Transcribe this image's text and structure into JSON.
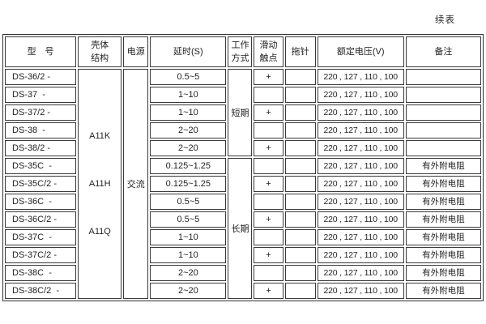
{
  "page": {
    "continued_label": "续表",
    "background_color": "#ffffff",
    "grid_color": "#3b3b3b",
    "text_color": "#1f1f1f"
  },
  "table": {
    "headers": [
      "型　号",
      "壳体\n结构",
      "电源",
      "延时(S)",
      "工作\n方式",
      "滑动\n触点",
      "拖针",
      "额定电压(V)",
      "备注"
    ],
    "shell_codes": [
      "A11K",
      "A11H",
      "A11Q"
    ],
    "power": "交流",
    "work_modes": [
      {
        "label": "短期",
        "rows": 5
      },
      {
        "label": "长期",
        "rows": 8
      }
    ],
    "rows": [
      {
        "model": "DS-36/2 -",
        "delay": "0.5~5",
        "slide": "+",
        "pointer": "",
        "voltage": "220 , 127 , 110 , 100",
        "note": ""
      },
      {
        "model": "DS-37  -",
        "delay": "1~10",
        "slide": "",
        "pointer": "",
        "voltage": "220 , 127 , 110 , 100",
        "note": ""
      },
      {
        "model": "DS-37/2 -",
        "delay": "1~10",
        "slide": "+",
        "pointer": "",
        "voltage": "220 , 127 , 110 , 100",
        "note": ""
      },
      {
        "model": "DS-38  -",
        "delay": "2~20",
        "slide": "",
        "pointer": "",
        "voltage": "220 , 127 , 110 , 100",
        "note": ""
      },
      {
        "model": "DS-38/2 -",
        "delay": "2~20",
        "slide": "+",
        "pointer": "",
        "voltage": "220 , 127 , 110 , 100",
        "note": ""
      },
      {
        "model": "DS-35C  -",
        "delay": "0.125~1.25",
        "slide": "",
        "pointer": "",
        "voltage": "220 , 127 , 110 , 100",
        "note": "有外附电阻"
      },
      {
        "model": "DS-35C/2 -",
        "delay": "0.125~1.25",
        "slide": "+",
        "pointer": "",
        "voltage": "220 , 127 , 110 , 100",
        "note": "有外附电阻"
      },
      {
        "model": "DS-36C  -",
        "delay": "0.5~5",
        "slide": "",
        "pointer": "",
        "voltage": "220 , 127 , 110 , 100",
        "note": "有外附电阻"
      },
      {
        "model": "DS-36C/2 -",
        "delay": "0.5~5",
        "slide": "+",
        "pointer": "",
        "voltage": "220 , 127 , 110 , 100",
        "note": "有外附电阻"
      },
      {
        "model": "DS-37C  -",
        "delay": "1~10",
        "slide": "",
        "pointer": "",
        "voltage": "220 , 127 , 110 , 100",
        "note": "有外附电阻"
      },
      {
        "model": "DS-37C/2 -",
        "delay": "1~10",
        "slide": "+",
        "pointer": "",
        "voltage": "220 , 127 , 110 , 100",
        "note": "有外附电阻"
      },
      {
        "model": "DS-38C  -",
        "delay": "2~20",
        "slide": "",
        "pointer": "",
        "voltage": "220 , 127 , 110 , 100",
        "note": "有外附电阻"
      },
      {
        "model": "DS-38C/2  -",
        "delay": "2~20",
        "slide": "+",
        "pointer": "",
        "voltage": "220 , 127 , 110 , 100",
        "note": "有外附电阻"
      }
    ]
  }
}
